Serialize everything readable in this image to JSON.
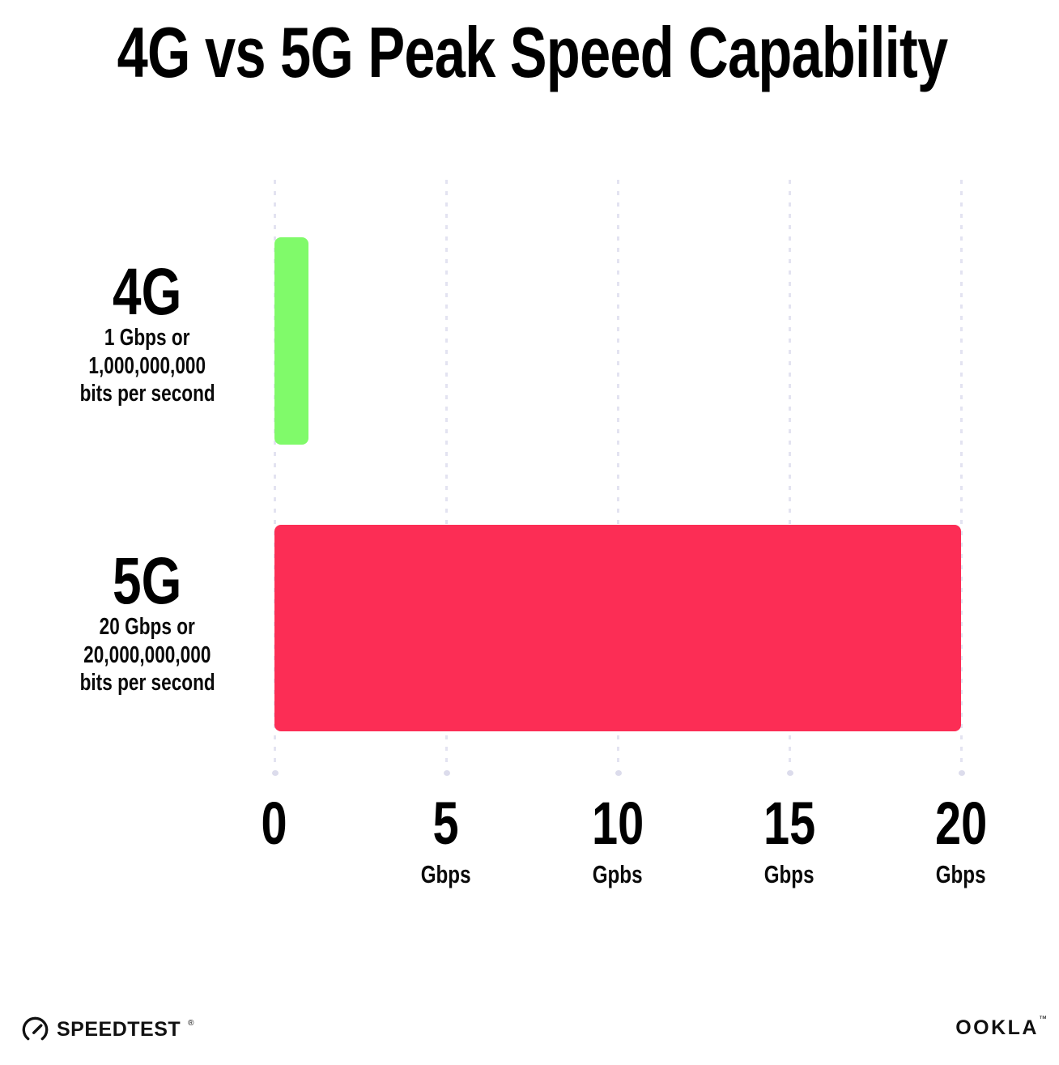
{
  "title": "4G vs 5G Peak Speed Capability",
  "chart_data": {
    "type": "bar",
    "orientation": "horizontal",
    "title": "4G vs 5G Peak Speed Capability",
    "xlabel": "Gbps",
    "ylabel": "",
    "xlim": [
      0,
      20
    ],
    "grid": "dotted vertical gridlines at 0, 5, 10, 15, 20",
    "legend": "none",
    "rows": [
      {
        "label": "4G",
        "sub_line_1": "1 Gbps or",
        "sub_line_2": "1,000,000,000",
        "sub_line_3": "bits per second",
        "value": 1,
        "color": "#80fa6a"
      },
      {
        "label": "5G",
        "sub_line_1": "20 Gbps or",
        "sub_line_2": "20,000,000,000",
        "sub_line_3": "bits per second",
        "value": 20,
        "color": "#fc2d55"
      }
    ],
    "ticks": [
      {
        "value": 0,
        "label": "0",
        "unit": ""
      },
      {
        "value": 5,
        "label": "5",
        "unit": "Gbps"
      },
      {
        "value": 10,
        "label": "10",
        "unit": "Gpbs"
      },
      {
        "value": 15,
        "label": "15",
        "unit": "Gbps"
      },
      {
        "value": 20,
        "label": "20",
        "unit": "Gbps"
      }
    ]
  },
  "footer": {
    "speedtest_label": "SPEEDTEST",
    "speedtest_mark": "®",
    "ookla_label": "OOKLA",
    "ookla_mark": "™"
  },
  "colors": {
    "background": "#ffffff",
    "bar_4g": "#80fa6a",
    "bar_5g": "#fc2d55",
    "gridline": "#e3e3f1",
    "text": "#000000"
  }
}
